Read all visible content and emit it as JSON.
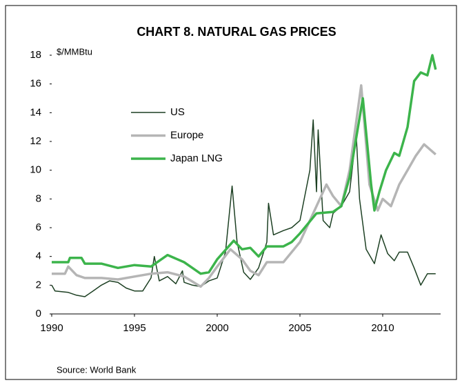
{
  "chart_data": {
    "type": "line",
    "title": "CHART 8. NATURAL GAS PRICES",
    "y_label": "$/MMBtu",
    "source": "Source: World Bank",
    "xlim": [
      1990,
      2013.5
    ],
    "xticks": [
      1990,
      1995,
      2000,
      2005,
      2010
    ],
    "ylim": [
      0,
      18
    ],
    "yticks": [
      0,
      2,
      4,
      6,
      8,
      10,
      12,
      14,
      16,
      18
    ],
    "grid": false,
    "series": [
      {
        "name": "US",
        "color": "#1c3f22",
        "width": 1.5,
        "x": [
          1990,
          1990.2,
          1991,
          1991.5,
          1992,
          1992.5,
          1993,
          1993.5,
          1994,
          1994.5,
          1995,
          1995.5,
          1996,
          1996.2,
          1996.5,
          1997,
          1997.5,
          1997.9,
          1998,
          1998.5,
          1999,
          1999.5,
          2000,
          2000.5,
          2000.9,
          2001.2,
          2001.6,
          2002,
          2002.5,
          2003,
          2003.1,
          2003.4,
          2004,
          2004.5,
          2005,
          2005.6,
          2005.8,
          2006,
          2006.1,
          2006.4,
          2006.8,
          2007,
          2007.5,
          2008,
          2008.4,
          2008.6,
          2009,
          2009.5,
          2009.9,
          2010.3,
          2010.7,
          2011,
          2011.5,
          2011.9,
          2012.3,
          2012.7,
          2013.2
        ],
        "values": [
          2.0,
          1.6,
          1.5,
          1.3,
          1.2,
          1.6,
          2.0,
          2.3,
          2.2,
          1.8,
          1.6,
          1.6,
          2.5,
          4.0,
          2.3,
          2.6,
          2.1,
          3.0,
          2.2,
          2.0,
          1.9,
          2.3,
          2.5,
          4.3,
          8.9,
          5.0,
          2.9,
          2.4,
          3.2,
          5.0,
          7.7,
          5.5,
          5.8,
          6.0,
          6.5,
          10,
          13.5,
          8.5,
          12.8,
          6.5,
          6.0,
          7.0,
          7.5,
          8.5,
          12.5,
          8,
          4.5,
          3.5,
          5.5,
          4.2,
          3.7,
          4.3,
          4.3,
          3.2,
          2.0,
          2.8,
          2.8
        ]
      },
      {
        "name": "Europe",
        "color": "#b5b5b5",
        "width": 3.5,
        "x": [
          1990,
          1990.8,
          1991,
          1991.5,
          1992,
          1993,
          1994,
          1995,
          1996,
          1997,
          1998,
          1999,
          1999.5,
          2000,
          2000.8,
          2001.5,
          2002,
          2002.5,
          2003,
          2004,
          2005,
          2006,
          2006.6,
          2007,
          2007.5,
          2008,
          2008.7,
          2009.2,
          2009.7,
          2010,
          2010.5,
          2011,
          2011.5,
          2012,
          2012.5,
          2013.2
        ],
        "values": [
          2.8,
          2.8,
          3.3,
          2.7,
          2.5,
          2.5,
          2.4,
          2.6,
          2.8,
          2.9,
          2.6,
          1.9,
          2.5,
          3.3,
          4.5,
          3.8,
          3.0,
          2.7,
          3.6,
          3.6,
          5.0,
          7.5,
          9.0,
          8.2,
          7.5,
          10,
          15.9,
          9.0,
          7.2,
          8,
          7.5,
          9,
          10,
          11,
          11.8,
          11.1
        ]
      },
      {
        "name": "Japan LNG",
        "color": "#3cb44b",
        "width": 3.5,
        "x": [
          1990,
          1991,
          1991.1,
          1991.8,
          1992,
          1993,
          1994,
          1995,
          1996,
          1997,
          1998,
          1998.5,
          1999,
          1999.5,
          2000,
          2001,
          2001.5,
          2002,
          2002.5,
          2003,
          2004,
          2004.5,
          2005,
          2005.5,
          2006,
          2007,
          2007.5,
          2008,
          2008.8,
          2009.3,
          2009.5,
          2009.8,
          2010.2,
          2010.7,
          2011,
          2011.5,
          2011.9,
          2012.3,
          2012.7,
          2013.0,
          2013.2
        ],
        "values": [
          3.6,
          3.6,
          3.9,
          3.9,
          3.5,
          3.5,
          3.2,
          3.4,
          3.3,
          4.1,
          3.6,
          3.2,
          2.8,
          2.9,
          3.8,
          5.1,
          4.5,
          4.6,
          4.0,
          4.7,
          4.7,
          5.0,
          5.6,
          6.3,
          7.0,
          7.1,
          7.5,
          9.5,
          15,
          9.0,
          7.2,
          8.5,
          10,
          11.2,
          11,
          13,
          16.2,
          16.8,
          16.6,
          18,
          17
        ]
      }
    ]
  }
}
